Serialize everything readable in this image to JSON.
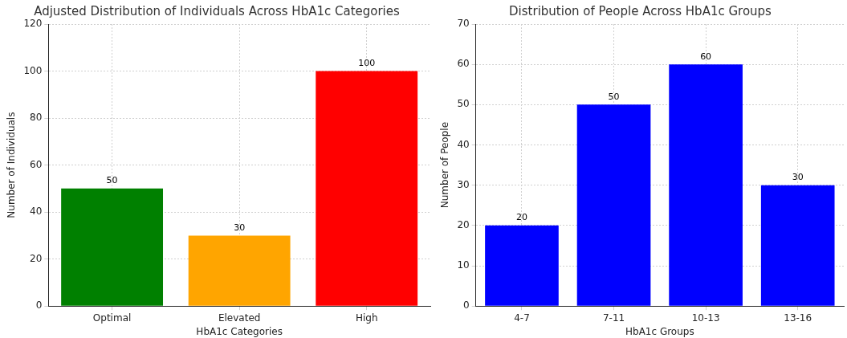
{
  "chart_data": [
    {
      "type": "bar",
      "title": "Adjusted Distribution of Individuals Across HbA1c Categories",
      "xlabel": "HbA1c Categories",
      "ylabel": "Number of Individuals",
      "categories": [
        "Optimal",
        "Elevated",
        "High"
      ],
      "values": [
        50,
        30,
        100
      ],
      "colors": [
        "#008000",
        "#ffa500",
        "#ff0000"
      ],
      "ylim": [
        0,
        120
      ],
      "yticks": [
        0,
        20,
        40,
        60,
        80,
        100,
        120
      ],
      "grid": true,
      "data_labels": true
    },
    {
      "type": "bar",
      "title": "Distribution of People Across HbA1c Groups",
      "xlabel": "HbA1c Groups",
      "ylabel": "Number of People",
      "categories": [
        "4-7",
        "7-11",
        "10-13",
        "13-16"
      ],
      "values": [
        20,
        50,
        60,
        30
      ],
      "colors": [
        "#0000ff",
        "#0000ff",
        "#0000ff",
        "#0000ff"
      ],
      "ylim": [
        0,
        70
      ],
      "yticks": [
        0,
        10,
        20,
        30,
        40,
        50,
        60,
        70
      ],
      "grid": true,
      "data_labels": true
    }
  ]
}
